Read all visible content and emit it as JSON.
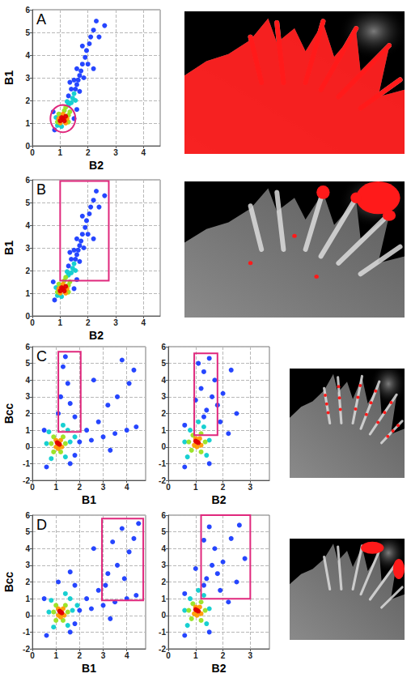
{
  "chart_data": [
    {
      "type": "scatter",
      "title": "A",
      "x_label": "B2",
      "y_label": "B1",
      "xlim": [
        0,
        4.6
      ],
      "xticks": [
        0,
        1,
        2,
        3,
        4
      ],
      "ylim": [
        0,
        6
      ],
      "yticks": [
        0,
        1,
        2,
        3,
        4,
        5,
        6
      ],
      "grid": true,
      "x": [
        0.8,
        1.5,
        0.75,
        1.6,
        2.2,
        1.35,
        1.55,
        1.6,
        1.65,
        1.7,
        1.75,
        1.8,
        1.9,
        1.95,
        2.05,
        2.1,
        2.2,
        2.3,
        1.6,
        1.5,
        1.85,
        1.4,
        1.7,
        2.0,
        1.3,
        2.4,
        1.8,
        2.6,
        1.45,
        1.5,
        1.25,
        1.55,
        0.85,
        1.3,
        1.4,
        1.05,
        0.9,
        0.9,
        1.3,
        1.15,
        0.95,
        1.3,
        1.35,
        1.2,
        0.95,
        1.25,
        1.1,
        1.0,
        1.2,
        1.1,
        1.0,
        1.2,
        1.05,
        1.15
      ],
      "values": [
        0.7,
        1.2,
        1.5,
        1.6,
        3.4,
        2.8,
        2.5,
        2.7,
        2.9,
        3.1,
        3.3,
        3.6,
        3.9,
        4.2,
        4.5,
        4.8,
        5.1,
        5.5,
        3.4,
        2.9,
        3.0,
        2.5,
        2.4,
        3.6,
        2.2,
        4.8,
        4.4,
        5.3,
        2.1,
        2.3,
        1.95,
        2.0,
        1.25,
        1.8,
        1.9,
        0.85,
        0.9,
        1.05,
        1.35,
        1.55,
        1.4,
        1.05,
        1.5,
        1.7,
        1.2,
        1.2,
        1.4,
        1.0,
        1.0,
        1.2,
        1.1,
        1.3,
        1.25,
        1.1
      ],
      "density": [
        1,
        1,
        1,
        1,
        1,
        1,
        1,
        1,
        1,
        1,
        1,
        1,
        1,
        1,
        1,
        1,
        1,
        1,
        1,
        1,
        1,
        1,
        1,
        1,
        1,
        1,
        1,
        1,
        2,
        2,
        2,
        2,
        2,
        2,
        2,
        2,
        2,
        3,
        3,
        3,
        3,
        3,
        3,
        3,
        4,
        4,
        4,
        4,
        4,
        5,
        5,
        5,
        5,
        5
      ],
      "gate": {
        "shape": "ellipse",
        "x": [
          0.65,
          1.55
        ],
        "y": [
          0.6,
          1.8
        ]
      }
    },
    {
      "type": "scatter",
      "title": "B",
      "x_label": "B2",
      "y_label": "B1",
      "xlim": [
        0,
        4.6
      ],
      "xticks": [
        0,
        1,
        2,
        3,
        4
      ],
      "ylim": [
        0,
        6
      ],
      "yticks": [
        0,
        1,
        2,
        3,
        4,
        5,
        6
      ],
      "grid": true,
      "x": [
        0.8,
        1.5,
        0.75,
        1.6,
        2.2,
        1.35,
        1.55,
        1.6,
        1.65,
        1.7,
        1.75,
        1.8,
        1.9,
        1.95,
        2.05,
        2.1,
        2.2,
        2.3,
        1.6,
        1.5,
        1.85,
        1.4,
        1.7,
        2.0,
        1.3,
        2.4,
        1.8,
        2.6,
        1.45,
        1.5,
        1.25,
        1.55,
        0.85,
        1.3,
        1.4,
        1.05,
        0.9,
        0.9,
        1.3,
        1.15,
        0.95,
        1.3,
        1.35,
        1.2,
        0.95,
        1.25,
        1.1,
        1.0,
        1.2,
        1.1,
        1.0,
        1.2,
        1.05,
        1.15
      ],
      "values": [
        0.7,
        1.2,
        1.5,
        1.6,
        3.4,
        2.8,
        2.5,
        2.7,
        2.9,
        3.1,
        3.3,
        3.6,
        3.9,
        4.2,
        4.5,
        4.8,
        5.1,
        5.5,
        3.4,
        2.9,
        3.0,
        2.5,
        2.4,
        3.6,
        2.2,
        4.8,
        4.4,
        5.3,
        2.1,
        2.3,
        1.95,
        2.0,
        1.25,
        1.8,
        1.9,
        0.85,
        0.9,
        1.05,
        1.35,
        1.55,
        1.4,
        1.05,
        1.5,
        1.7,
        1.2,
        1.2,
        1.4,
        1.0,
        1.0,
        1.2,
        1.1,
        1.3,
        1.25,
        1.1
      ],
      "density": [
        1,
        1,
        1,
        1,
        1,
        1,
        1,
        1,
        1,
        1,
        1,
        1,
        1,
        1,
        1,
        1,
        1,
        1,
        1,
        1,
        1,
        1,
        1,
        1,
        1,
        1,
        1,
        1,
        2,
        2,
        2,
        2,
        2,
        2,
        2,
        2,
        2,
        3,
        3,
        3,
        3,
        3,
        3,
        3,
        4,
        4,
        4,
        4,
        4,
        5,
        5,
        5,
        5,
        5
      ],
      "gate": {
        "shape": "rectangle",
        "x": [
          1.0,
          2.75
        ],
        "y": [
          1.55,
          5.95
        ]
      }
    },
    {
      "type": "scatter",
      "title": "C",
      "x_label": "B1",
      "y_label": "Bcc",
      "xlim": [
        0,
        4.8
      ],
      "xticks": [
        0,
        1,
        2,
        3,
        4
      ],
      "ylim": [
        -2,
        6
      ],
      "yticks": [
        -2,
        -1,
        0,
        1,
        2,
        3,
        4,
        5,
        6
      ],
      "grid": true,
      "x": [
        2.0,
        2.5,
        3.0,
        3.5,
        4.0,
        4.4,
        2.8,
        3.2,
        3.6,
        4.1,
        3.8,
        4.3,
        2.6,
        1.3,
        1.5,
        1.2,
        1.6,
        1.4,
        1.8,
        1.1,
        0.6,
        1.6,
        0.5,
        1.8,
        2.3,
        3.3,
        0.7,
        1.5,
        1.4,
        0.8,
        1.6,
        0.6,
        1.3,
        1.8,
        0.9,
        1.3,
        1.2,
        0.9,
        1.4,
        0.8,
        1.0,
        1.2,
        1.1,
        1.0,
        1.25,
        1.1,
        1.05,
        1.15
      ],
      "values": [
        0.3,
        0.4,
        0.6,
        0.8,
        1.0,
        1.2,
        1.5,
        2.5,
        3.0,
        3.8,
        5.2,
        4.6,
        4.0,
        4.8,
        3.8,
        3.0,
        2.6,
        5.4,
        1.8,
        2.0,
        -1.2,
        -1.0,
        1.0,
        -0.5,
        1.0,
        -0.2,
        0.9,
        1.0,
        -0.6,
        -0.7,
        0.3,
        0.2,
        1.3,
        0.6,
        0.6,
        0.6,
        -0.3,
        -0.3,
        0.2,
        0.2,
        0.4,
        0.4,
        -0.1,
        0.0,
        0.0,
        0.2,
        0.25,
        0.15
      ],
      "density": [
        1,
        1,
        1,
        1,
        1,
        1,
        1,
        1,
        1,
        1,
        1,
        1,
        1,
        1,
        1,
        1,
        1,
        1,
        1,
        1,
        1,
        1,
        1,
        1,
        1,
        1,
        2,
        2,
        2,
        2,
        2,
        2,
        2,
        2,
        3,
        3,
        3,
        3,
        3,
        3,
        4,
        4,
        4,
        4,
        4,
        5,
        5,
        5
      ],
      "gate": {
        "shape": "rectangle",
        "x": [
          1.1,
          2.05
        ],
        "y": [
          0.9,
          5.7
        ]
      }
    },
    {
      "type": "scatter",
      "x_label": "B2",
      "xlim": [
        0,
        3.7
      ],
      "xticks": [
        0,
        1,
        2,
        3
      ],
      "ylim": [
        -2,
        6
      ],
      "yticks": [
        -2,
        -1,
        0,
        1,
        2,
        3,
        4,
        5,
        6
      ],
      "grid": true,
      "x": [
        1.3,
        1.5,
        1.2,
        1.6,
        1.4,
        1.8,
        1.1,
        1.7,
        2.0,
        2.3,
        1.9,
        0.6,
        1.5,
        0.6,
        2.2,
        2.5,
        1.0,
        1.3,
        0.8,
        1.3,
        1.4,
        0.7,
        1.5,
        0.6,
        1.1,
        0.9,
        1.2,
        1.2,
        0.85,
        1.35,
        0.75,
        1.0,
        1.15,
        1.05,
        0.95,
        1.2,
        1.05,
        1.0,
        1.1
      ],
      "values": [
        4.5,
        5.3,
        3.5,
        3.0,
        2.2,
        2.5,
        5.0,
        4.0,
        3.2,
        4.6,
        1.5,
        -1.2,
        -1.0,
        1.3,
        0.8,
        2.0,
        2.8,
        1.8,
        1.0,
        1.2,
        -0.5,
        -0.6,
        0.4,
        0.3,
        1.5,
        0.7,
        0.8,
        -0.3,
        -0.2,
        0.3,
        0.3,
        0.5,
        0.5,
        0.0,
        0.1,
        0.1,
        0.3,
        0.35,
        0.25
      ],
      "density": [
        1,
        1,
        1,
        1,
        1,
        1,
        1,
        1,
        1,
        1,
        1,
        1,
        1,
        1,
        1,
        1,
        1,
        1,
        2,
        2,
        2,
        2,
        2,
        2,
        2,
        3,
        3,
        3,
        3,
        3,
        3,
        4,
        4,
        4,
        4,
        4,
        5,
        5,
        5
      ],
      "gate": {
        "shape": "rectangle",
        "x": [
          0.95,
          1.8
        ],
        "y": [
          0.7,
          5.6
        ]
      }
    },
    {
      "type": "scatter",
      "title": "D",
      "x_label": "B1",
      "y_label": "Bcc",
      "xlim": [
        0,
        4.8
      ],
      "xticks": [
        0,
        1,
        2,
        3,
        4
      ],
      "ylim": [
        -2,
        6
      ],
      "yticks": [
        -2,
        -1,
        0,
        1,
        2,
        3,
        4,
        5,
        6
      ],
      "grid": true,
      "x": [
        2.0,
        2.5,
        3.0,
        3.5,
        4.0,
        4.4,
        2.8,
        3.2,
        3.6,
        4.1,
        3.8,
        4.3,
        2.6,
        3.4,
        3.9,
        4.5,
        1.6,
        3.1,
        1.8,
        1.1,
        0.6,
        1.6,
        0.5,
        1.8,
        2.3,
        3.3,
        0.8,
        1.6,
        1.5,
        0.9,
        1.7,
        0.7,
        1.4,
        1.9,
        1.0,
        1.4,
        1.3,
        1.0,
        1.5,
        0.9,
        1.1,
        1.3,
        1.2,
        1.1,
        1.35,
        1.2,
        1.15,
        1.25
      ],
      "values": [
        0.3,
        0.4,
        0.6,
        0.8,
        1.0,
        1.2,
        1.5,
        2.5,
        3.0,
        3.8,
        5.2,
        4.6,
        4.0,
        4.4,
        2.2,
        5.5,
        2.6,
        1.8,
        1.8,
        2.0,
        -1.2,
        -1.0,
        1.0,
        -0.5,
        1.0,
        -0.2,
        0.9,
        1.0,
        -0.6,
        -0.7,
        0.3,
        0.2,
        1.3,
        0.6,
        0.6,
        0.6,
        -0.3,
        -0.3,
        0.2,
        0.2,
        0.4,
        0.4,
        -0.1,
        0.0,
        0.0,
        0.2,
        0.25,
        0.15
      ],
      "density": [
        1,
        1,
        1,
        1,
        1,
        1,
        1,
        1,
        1,
        1,
        1,
        1,
        1,
        1,
        1,
        1,
        1,
        1,
        1,
        1,
        1,
        1,
        1,
        1,
        1,
        1,
        2,
        2,
        2,
        2,
        2,
        2,
        2,
        2,
        3,
        3,
        3,
        3,
        3,
        3,
        4,
        4,
        4,
        4,
        4,
        5,
        5,
        5
      ],
      "gate": {
        "shape": "rectangle",
        "x": [
          2.95,
          4.7
        ],
        "y": [
          0.9,
          5.8
        ]
      }
    },
    {
      "type": "scatter",
      "x_label": "B2",
      "xlim": [
        0,
        3.7
      ],
      "xticks": [
        0,
        1,
        2,
        3
      ],
      "ylim": [
        -2,
        6
      ],
      "yticks": [
        -2,
        -1,
        0,
        1,
        2,
        3,
        4,
        5,
        6
      ],
      "grid": true,
      "x": [
        1.3,
        1.5,
        2.8,
        1.6,
        1.4,
        1.8,
        2.6,
        1.7,
        2.0,
        2.3,
        1.9,
        0.6,
        1.5,
        0.6,
        2.2,
        2.5,
        1.0,
        1.3,
        0.8,
        1.3,
        1.4,
        0.7,
        1.5,
        0.6,
        1.1,
        0.9,
        1.2,
        1.2,
        0.85,
        1.35,
        0.75,
        1.0,
        1.15,
        1.05,
        0.95,
        1.2,
        1.05,
        1.0,
        1.1
      ],
      "values": [
        4.5,
        5.3,
        3.4,
        3.0,
        2.2,
        2.5,
        5.4,
        4.0,
        3.2,
        4.6,
        1.5,
        -1.2,
        -1.0,
        1.3,
        0.8,
        2.0,
        2.8,
        1.8,
        1.0,
        1.2,
        -0.5,
        -0.6,
        0.4,
        0.3,
        1.5,
        0.7,
        0.8,
        -0.3,
        -0.2,
        0.3,
        0.3,
        0.5,
        0.5,
        0.0,
        0.1,
        0.1,
        0.3,
        0.35,
        0.25
      ],
      "density": [
        1,
        1,
        1,
        1,
        1,
        1,
        1,
        1,
        1,
        1,
        1,
        1,
        1,
        1,
        1,
        1,
        1,
        1,
        2,
        2,
        2,
        2,
        2,
        2,
        2,
        3,
        3,
        3,
        3,
        3,
        3,
        4,
        4,
        4,
        4,
        4,
        5,
        5,
        5
      ],
      "gate": {
        "shape": "rectangle",
        "x": [
          1.2,
          3.0
        ],
        "y": [
          1.0,
          6.0
        ]
      }
    }
  ]
}
